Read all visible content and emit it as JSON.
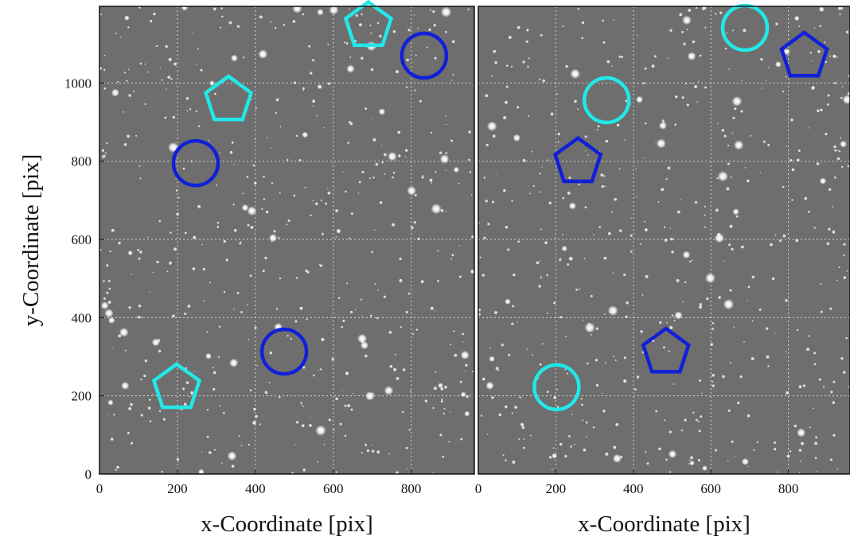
{
  "chart_data": [
    {
      "type": "scatter",
      "xlabel": "x-Coordinate [pix]",
      "ylabel": "y-Coordinate [pix]",
      "xlim": [
        0,
        962
      ],
      "ylim": [
        0,
        1196
      ],
      "xticks": [
        0,
        200,
        400,
        600,
        800
      ],
      "yticks": [
        0,
        200,
        400,
        600,
        800,
        1000
      ],
      "grid": true,
      "series": [
        {
          "marker": "pentagon",
          "color": "#22e8e8",
          "x": [
            690,
            331,
            198
          ],
          "values": [
            1148,
            958,
            222
          ]
        },
        {
          "marker": "circle",
          "color": "#1020d8",
          "x": [
            833,
            247,
            474
          ],
          "values": [
            1070,
            795,
            313
          ]
        }
      ]
    },
    {
      "type": "scatter",
      "xlabel": "x-Coordinate [pix]",
      "xlim": [
        0,
        959
      ],
      "ylim": [
        0,
        1196
      ],
      "xticks": [
        0,
        200,
        400,
        600,
        800
      ],
      "yticks": [
        0,
        200,
        400,
        600,
        800,
        1000
      ],
      "grid": true,
      "series": [
        {
          "marker": "circle",
          "color": "#22e8e8",
          "x": [
            688,
            331,
            202
          ],
          "values": [
            1141,
            956,
            222
          ]
        },
        {
          "marker": "pentagon",
          "color": "#1020d8",
          "x": [
            841,
            257,
            484
          ],
          "values": [
            1070,
            800,
            313
          ]
        }
      ]
    }
  ]
}
